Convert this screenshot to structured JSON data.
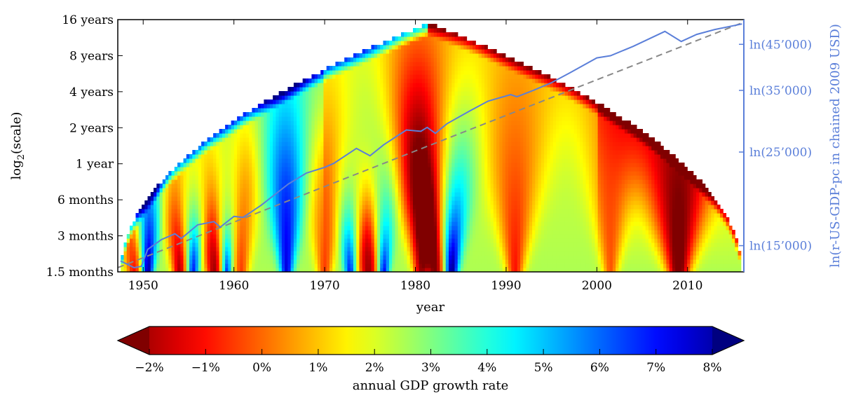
{
  "chart_data": {
    "type": "heatmap",
    "title": "",
    "xlabel": "year",
    "ylabel": "log2(scale)",
    "ylabel_parts": {
      "base": "log",
      "sub": "2",
      "rest": "(scale)"
    },
    "right_ylabel": "ln(r-US-GDP-pc in chained 2009 USD)",
    "xlim": [
      1947.2,
      2016.2
    ],
    "x_ticks": [
      1950,
      1960,
      1970,
      1980,
      1990,
      2000,
      2010
    ],
    "x_tick_labels": [
      "1950",
      "1960",
      "1970",
      "1980",
      "1990",
      "2000",
      "2010"
    ],
    "y_scale": "log2",
    "y_ticks_months": [
      1.5,
      3,
      6,
      12,
      24,
      48,
      96,
      192
    ],
    "y_tick_labels": [
      "1.5 months",
      "3 months",
      "6 months",
      "1 year",
      "2 years",
      "4 years",
      "8 years",
      "16 years"
    ],
    "right_axis": {
      "ticks_usd": [
        15000,
        25000,
        35000,
        45000
      ],
      "tick_labels": [
        "ln(15’000)",
        "ln(25’000)",
        "ln(35’000)",
        "ln(45’000)"
      ],
      "color": "#5b7fd9"
    },
    "colorbar": {
      "label": "annual GDP growth rate",
      "range": [
        -2.5,
        8.5
      ],
      "ticks": [
        -2,
        -1,
        0,
        1,
        2,
        3,
        4,
        5,
        6,
        7,
        8
      ],
      "tick_labels": [
        "−2%",
        "−1%",
        "0%",
        "1%",
        "2%",
        "3%",
        "4%",
        "5%",
        "6%",
        "7%",
        "8%"
      ],
      "colormap": "jet",
      "extend": "both"
    },
    "heatmap": {
      "description_value": "annual GDP growth rate",
      "cone_of_influence": {
        "start_year": 1947.5,
        "end_year": 2016,
        "peak_year": 1981.5,
        "max_scale_months": 180
      },
      "background_rate": 2.5,
      "low_growth_episodes": [
        {
          "year": 1949.0,
          "rate": -1.0,
          "width": 0.9
        },
        {
          "year": 1954.0,
          "rate": -2.0,
          "width": 0.8
        },
        {
          "year": 1957.8,
          "rate": -2.2,
          "width": 0.9
        },
        {
          "year": 1960.8,
          "rate": -0.5,
          "width": 0.8
        },
        {
          "year": 1970.0,
          "rate": -0.5,
          "width": 0.8
        },
        {
          "year": 1974.8,
          "rate": -2.2,
          "width": 1.1
        },
        {
          "year": 1980.6,
          "rate": -2.0,
          "width": 0.8
        },
        {
          "year": 1982.2,
          "rate": -2.5,
          "width": 0.9
        },
        {
          "year": 1991.0,
          "rate": -1.0,
          "width": 0.9
        },
        {
          "year": 2001.5,
          "rate": -0.2,
          "width": 0.8
        },
        {
          "year": 2009.0,
          "rate": -3.0,
          "width": 1.2
        }
      ],
      "high_growth_episodes": [
        {
          "year": 1950.5,
          "rate": 8.5,
          "width": 0.6
        },
        {
          "year": 1955.5,
          "rate": 7.0,
          "width": 0.6
        },
        {
          "year": 1959.2,
          "rate": 7.0,
          "width": 0.5
        },
        {
          "year": 1965.8,
          "rate": 7.5,
          "width": 0.7
        },
        {
          "year": 1972.8,
          "rate": 7.0,
          "width": 0.6
        },
        {
          "year": 1976.5,
          "rate": 7.5,
          "width": 0.6
        },
        {
          "year": 1984.0,
          "rate": 8.5,
          "width": 0.7
        }
      ]
    },
    "series": [
      {
        "name": "",
        "color": "#5b7fd9",
        "axis": "right",
        "x": [
          1947.5,
          1949.0,
          1949.8,
          1950.5,
          1952.0,
          1953.5,
          1954.2,
          1956.0,
          1957.8,
          1958.5,
          1960.0,
          1961.0,
          1963.0,
          1966.0,
          1968.0,
          1970.0,
          1971.0,
          1973.5,
          1975.0,
          1976.5,
          1979.0,
          1980.6,
          1981.3,
          1982.2,
          1983.5,
          1986.0,
          1988.0,
          1990.5,
          1991.2,
          1993.0,
          1995.0,
          1997.0,
          2000.0,
          2001.5,
          2004.0,
          2007.5,
          2009.3,
          2011.0,
          2013.0,
          2016.0
        ],
        "y_usd": [
          13800,
          13300,
          13400,
          14700,
          15500,
          16000,
          15600,
          16800,
          17100,
          16600,
          17600,
          17500,
          18700,
          21000,
          22300,
          23000,
          23500,
          25500,
          24500,
          26000,
          28200,
          28000,
          28600,
          27700,
          29200,
          31300,
          33000,
          34200,
          33800,
          35000,
          36500,
          38500,
          41800,
          42300,
          44500,
          48300,
          45700,
          47500,
          48800,
          50300
        ]
      },
      {
        "name": "",
        "color": "#888888",
        "axis": "right",
        "style": "dashed",
        "x": [
          1947.2,
          2016.2
        ],
        "y_usd": [
          13300,
          50800
        ]
      }
    ]
  }
}
